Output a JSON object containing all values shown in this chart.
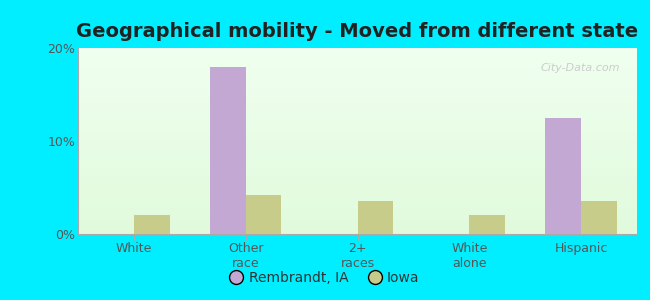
{
  "title": "Geographical mobility - Moved from different state",
  "categories": [
    "White",
    "Other\nrace",
    "2+\nraces",
    "White\nalone",
    "Hispanic"
  ],
  "rembrandt_values": [
    0,
    18.0,
    0,
    0,
    12.5
  ],
  "iowa_values": [
    2.0,
    4.2,
    3.5,
    2.0,
    3.5
  ],
  "rembrandt_color": "#c4a8d4",
  "iowa_color": "#c8cc8a",
  "ylim": [
    0,
    20
  ],
  "yticks": [
    0,
    10,
    20
  ],
  "ytick_labels": [
    "0%",
    "10%",
    "20%"
  ],
  "bar_width": 0.32,
  "bg_top_color": "#e8f5e8",
  "bg_bottom_color": "#f0fce8",
  "outer_bg": "#00eeff",
  "legend_rembrandt": "Rembrandt, IA",
  "legend_iowa": "Iowa",
  "title_fontsize": 14,
  "tick_fontsize": 9,
  "legend_fontsize": 10,
  "watermark": "City-Data.com"
}
